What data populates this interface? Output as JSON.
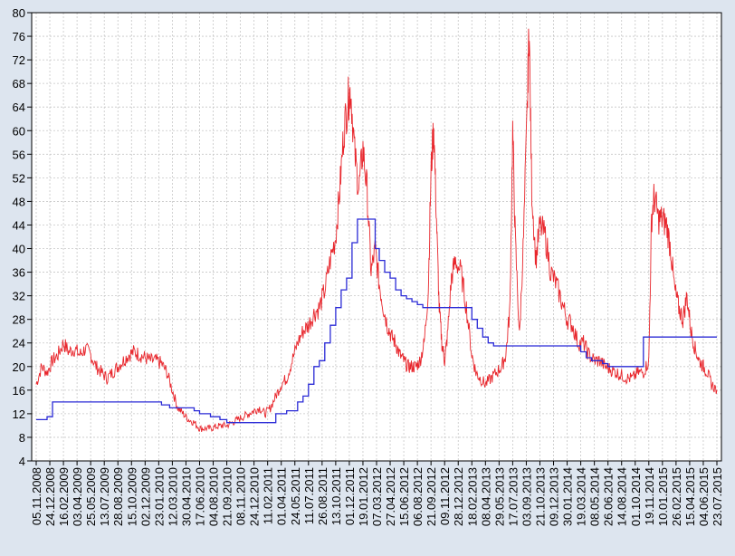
{
  "chart_data": {
    "type": "line",
    "title": "",
    "xlabel": "",
    "ylabel": "",
    "ylim": [
      4,
      80
    ],
    "yticks": [
      4,
      8,
      12,
      16,
      20,
      24,
      28,
      32,
      36,
      40,
      44,
      48,
      52,
      56,
      60,
      64,
      68,
      72,
      76,
      80
    ],
    "grid": true,
    "x_tick_labels": [
      "05.11.2008",
      "24.12.2008",
      "16.02.2009",
      "03.04.2009",
      "25.05.2009",
      "13.07.2009",
      "28.08.2009",
      "15.10.2009",
      "02.12.2009",
      "23.01.2010",
      "12.03.2010",
      "30.04.2010",
      "17.06.2010",
      "04.08.2010",
      "21.09.2010",
      "08.11.2010",
      "24.12.2010",
      "11.02.2011",
      "01.04.2011",
      "24.05.2011",
      "11.07.2011",
      "26.08.2011",
      "13.10.2011",
      "01.12.2011",
      "19.01.2012",
      "07.03.2012",
      "27.04.2012",
      "15.06.2012",
      "06.08.2012",
      "21.09.2012",
      "09.11.2012",
      "28.12.2012",
      "18.02.2013",
      "08.04.2013",
      "29.05.2013",
      "17.07.2013",
      "03.09.2013",
      "21.10.2013",
      "09.12.2013",
      "30.01.2014",
      "19.03.2014",
      "08.05.2014",
      "26.06.2014",
      "14.08.2014",
      "01.10.2014",
      "19.11.2014",
      "10.01.2015",
      "26.02.2015",
      "15.04.2015",
      "04.06.2015",
      "23.07.2015"
    ],
    "series": [
      {
        "color": "#e8262c",
        "style": "daily",
        "values": [
          [
            0,
            17
          ],
          [
            0.4,
            20
          ],
          [
            0.8,
            19
          ],
          [
            1.2,
            21
          ],
          [
            1.6,
            22
          ],
          [
            2,
            24
          ],
          [
            2.4,
            22.5
          ],
          [
            2.8,
            23
          ],
          [
            3.2,
            22
          ],
          [
            3.6,
            23
          ],
          [
            4,
            22
          ],
          [
            4.4,
            20
          ],
          [
            4.8,
            19
          ],
          [
            5.2,
            18
          ],
          [
            5.6,
            19
          ],
          [
            6,
            20
          ],
          [
            6.4,
            21
          ],
          [
            6.8,
            22
          ],
          [
            7.2,
            22.5
          ],
          [
            7.6,
            22
          ],
          [
            8,
            21.5
          ],
          [
            8.4,
            21
          ],
          [
            8.8,
            21
          ],
          [
            9.2,
            20.5
          ],
          [
            9.6,
            19
          ],
          [
            10,
            16
          ],
          [
            10.4,
            13
          ],
          [
            10.8,
            12
          ],
          [
            11.2,
            11
          ],
          [
            11.6,
            10.5
          ],
          [
            12,
            9.5
          ],
          [
            12.4,
            9.5
          ],
          [
            12.8,
            9.5
          ],
          [
            13.2,
            9.8
          ],
          [
            13.6,
            10
          ],
          [
            14,
            10
          ],
          [
            14.4,
            10.5
          ],
          [
            14.8,
            11
          ],
          [
            15.2,
            11.5
          ],
          [
            15.6,
            12
          ],
          [
            16,
            12.5
          ],
          [
            16.4,
            13
          ],
          [
            16.8,
            12
          ],
          [
            17.2,
            13
          ],
          [
            17.6,
            15
          ],
          [
            18,
            17
          ],
          [
            18.4,
            18
          ],
          [
            18.8,
            21
          ],
          [
            19.2,
            24
          ],
          [
            19.6,
            26
          ],
          [
            20,
            27
          ],
          [
            20.4,
            29
          ],
          [
            20.8,
            30
          ],
          [
            21.2,
            33
          ],
          [
            21.6,
            38
          ],
          [
            22,
            42
          ],
          [
            22.3,
            50
          ],
          [
            22.6,
            60
          ],
          [
            22.9,
            65
          ],
          [
            23.1,
            67
          ],
          [
            23.4,
            56
          ],
          [
            23.7,
            50
          ],
          [
            24,
            57
          ],
          [
            24.3,
            50
          ],
          [
            24.6,
            36
          ],
          [
            24.9,
            40
          ],
          [
            25.2,
            34
          ],
          [
            25.5,
            30
          ],
          [
            25.8,
            27
          ],
          [
            26.1,
            25
          ],
          [
            26.4,
            24
          ],
          [
            26.7,
            22
          ],
          [
            27,
            21
          ],
          [
            27.3,
            20
          ],
          [
            27.6,
            20
          ],
          [
            27.9,
            20
          ],
          [
            28.2,
            21
          ],
          [
            28.5,
            24
          ],
          [
            28.8,
            33
          ],
          [
            29,
            53
          ],
          [
            29.2,
            61
          ],
          [
            29.4,
            45
          ],
          [
            29.6,
            30
          ],
          [
            29.8,
            24
          ],
          [
            30,
            21
          ],
          [
            30.2,
            25
          ],
          [
            30.5,
            35
          ],
          [
            30.8,
            38
          ],
          [
            31.2,
            36
          ],
          [
            31.6,
            30
          ],
          [
            32,
            22
          ],
          [
            32.3,
            19
          ],
          [
            32.6,
            18
          ],
          [
            33,
            17
          ],
          [
            33.4,
            18
          ],
          [
            33.8,
            19
          ],
          [
            34.2,
            20
          ],
          [
            34.5,
            22
          ],
          [
            34.8,
            30
          ],
          [
            35,
            60
          ],
          [
            35.2,
            41
          ],
          [
            35.5,
            25
          ],
          [
            35.8,
            42
          ],
          [
            36.1,
            66
          ],
          [
            36.2,
            78
          ],
          [
            36.4,
            50
          ],
          [
            36.7,
            38
          ],
          [
            37,
            44
          ],
          [
            37.4,
            42
          ],
          [
            37.8,
            36
          ],
          [
            38.2,
            34
          ],
          [
            38.6,
            31
          ],
          [
            39,
            28
          ],
          [
            39.4,
            27
          ],
          [
            39.8,
            24
          ],
          [
            40.2,
            24
          ],
          [
            40.6,
            22
          ],
          [
            41,
            21
          ],
          [
            41.4,
            21
          ],
          [
            41.8,
            20
          ],
          [
            42.2,
            19.5
          ],
          [
            42.6,
            19
          ],
          [
            43,
            18.5
          ],
          [
            43.4,
            18
          ],
          [
            43.8,
            18
          ],
          [
            44.2,
            19
          ],
          [
            44.6,
            19
          ],
          [
            45,
            21
          ],
          [
            45.2,
            45
          ],
          [
            45.4,
            49
          ],
          [
            45.7,
            45
          ],
          [
            46,
            45
          ],
          [
            46.3,
            44
          ],
          [
            46.6,
            40
          ],
          [
            46.9,
            33
          ],
          [
            47.2,
            30
          ],
          [
            47.5,
            28
          ],
          [
            47.8,
            32
          ],
          [
            48.1,
            26
          ],
          [
            48.4,
            23
          ],
          [
            48.7,
            21
          ],
          [
            49,
            20
          ],
          [
            49.3,
            19
          ],
          [
            49.6,
            17
          ],
          [
            50,
            16
          ]
        ]
      },
      {
        "color": "#2a2ad6",
        "style": "step",
        "values": [
          [
            0,
            11
          ],
          [
            0.8,
            11.5
          ],
          [
            1.2,
            14
          ],
          [
            8,
            14
          ],
          [
            9.2,
            13.5
          ],
          [
            9.8,
            13
          ],
          [
            11.6,
            12.5
          ],
          [
            12,
            12
          ],
          [
            12.8,
            11.5
          ],
          [
            13.5,
            11
          ],
          [
            14,
            10.5
          ],
          [
            17.6,
            10.5
          ],
          [
            17.6,
            12
          ],
          [
            18.4,
            12.5
          ],
          [
            19.2,
            14
          ],
          [
            19.6,
            15
          ],
          [
            20,
            17
          ],
          [
            20.4,
            20
          ],
          [
            20.8,
            21
          ],
          [
            21.2,
            24
          ],
          [
            21.6,
            27
          ],
          [
            22,
            30
          ],
          [
            22.4,
            33
          ],
          [
            22.8,
            35
          ],
          [
            23.2,
            41
          ],
          [
            23.6,
            45
          ],
          [
            24.6,
            45
          ],
          [
            24.9,
            40
          ],
          [
            25.2,
            38
          ],
          [
            25.6,
            36
          ],
          [
            26,
            35
          ],
          [
            26.4,
            33
          ],
          [
            26.8,
            32
          ],
          [
            27.2,
            31.5
          ],
          [
            27.6,
            31
          ],
          [
            28,
            30.5
          ],
          [
            28.4,
            30
          ],
          [
            31.6,
            30
          ],
          [
            32,
            28
          ],
          [
            32.4,
            26.5
          ],
          [
            32.8,
            25
          ],
          [
            33.2,
            24
          ],
          [
            33.6,
            23.5
          ],
          [
            39.6,
            23.5
          ],
          [
            40,
            22.5
          ],
          [
            40.4,
            21.5
          ],
          [
            40.8,
            21
          ],
          [
            41.6,
            20.5
          ],
          [
            42,
            20
          ],
          [
            44.6,
            20
          ],
          [
            44.6,
            25
          ],
          [
            50,
            25
          ]
        ]
      }
    ]
  }
}
